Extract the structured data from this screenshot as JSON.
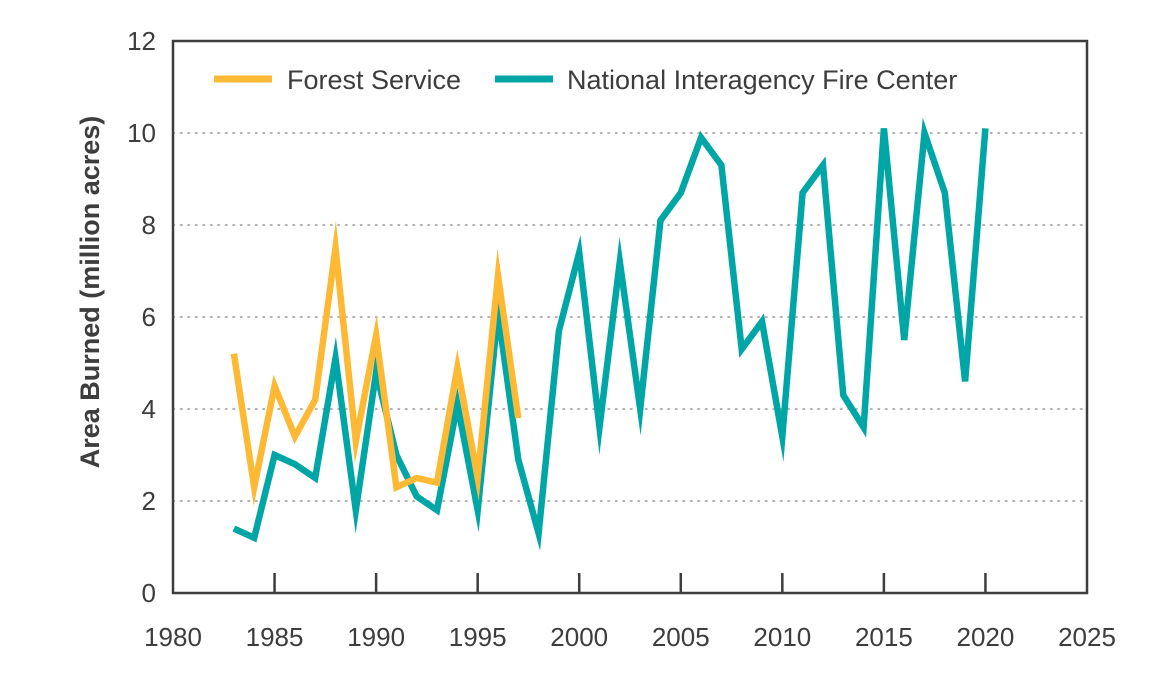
{
  "colors": {
    "forest_service": "#FDB933",
    "nifc": "#00A6A6",
    "frame": "#3d3d3d",
    "grid": "#9a9a9a"
  },
  "chart_data": {
    "type": "line",
    "xlabel": "",
    "ylabel": "Area Burned (million acres)",
    "xlim": [
      1980,
      2025
    ],
    "ylim": [
      0,
      12
    ],
    "xticks": [
      1980,
      1985,
      1990,
      1995,
      2000,
      2005,
      2010,
      2015,
      2020,
      2025
    ],
    "yticks": [
      0,
      2,
      4,
      6,
      8,
      10,
      12
    ],
    "grid": "horizontal dotted",
    "legend_position": "top-left",
    "series": [
      {
        "name": "Forest Service",
        "color": "#FDB933",
        "x": [
          1983,
          1984,
          1985,
          1986,
          1987,
          1988,
          1989,
          1990,
          1991,
          1992,
          1993,
          1994,
          1995,
          1996,
          1997
        ],
        "y": [
          5.2,
          2.3,
          4.5,
          3.4,
          4.2,
          7.5,
          3.3,
          5.6,
          2.3,
          2.5,
          2.4,
          4.9,
          2.5,
          6.9,
          3.8
        ]
      },
      {
        "name": "National Interagency Fire Center",
        "color": "#00A6A6",
        "x": [
          1983,
          1984,
          1985,
          1986,
          1987,
          1988,
          1989,
          1990,
          1991,
          1992,
          1993,
          1994,
          1995,
          1996,
          1997,
          1998,
          1999,
          2000,
          2001,
          2002,
          2003,
          2004,
          2005,
          2006,
          2007,
          2008,
          2009,
          2010,
          2011,
          2012,
          2013,
          2014,
          2015,
          2016,
          2017,
          2018,
          2019,
          2020
        ],
        "y": [
          1.4,
          1.2,
          3.0,
          2.8,
          2.5,
          5.1,
          1.8,
          4.8,
          3.0,
          2.1,
          1.8,
          4.1,
          1.8,
          6.1,
          2.9,
          1.3,
          5.7,
          7.4,
          3.6,
          7.2,
          4.0,
          8.1,
          8.7,
          9.9,
          9.3,
          5.3,
          5.9,
          3.4,
          8.7,
          9.3,
          4.3,
          3.6,
          10.1,
          5.5,
          10.0,
          8.7,
          4.6,
          10.1
        ]
      }
    ]
  }
}
